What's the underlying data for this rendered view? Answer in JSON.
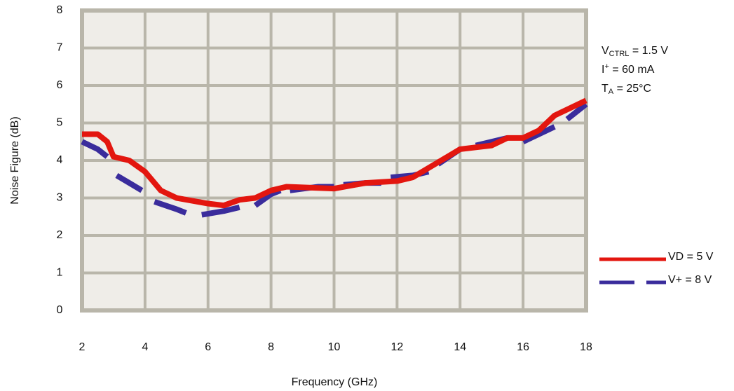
{
  "chart_data": {
    "type": "line",
    "xlabel": "Frequency (GHz)",
    "ylabel": "Noise Figure  (dB)",
    "xlim": [
      2,
      18
    ],
    "xticks": [
      2,
      4,
      6,
      8,
      10,
      12,
      14,
      16,
      18
    ],
    "ylim": [
      0,
      8
    ],
    "yticks": [
      0,
      1,
      2,
      3,
      4,
      5,
      6,
      7,
      8
    ],
    "grid": true,
    "legend": "right",
    "annotations": [
      [
        {
          "text": "V"
        },
        {
          "text": "CTRL",
          "shift": "sub"
        },
        {
          "text": " = 1.5 V"
        }
      ],
      [
        {
          "text": "I"
        },
        {
          "text": "+",
          "shift": "super"
        },
        {
          "text": "  = 60 mA"
        }
      ],
      [
        {
          "text": "T"
        },
        {
          "text": "A",
          "shift": "sub"
        },
        {
          "text": " = 25°C"
        }
      ]
    ],
    "series": [
      {
        "name": "VD = 5 V",
        "color": "#e3160f",
        "dashed": false,
        "x": [
          2,
          2.5,
          2.8,
          3.0,
          3.5,
          4.0,
          4.5,
          5.0,
          6.0,
          6.5,
          7.0,
          7.5,
          8.0,
          8.5,
          10,
          11,
          12,
          12.5,
          13,
          14,
          15,
          15.5,
          16,
          16.5,
          17,
          17.5,
          18
        ],
        "values": [
          4.7,
          4.7,
          4.5,
          4.1,
          4.0,
          3.7,
          3.2,
          3.0,
          2.85,
          2.8,
          2.95,
          3.0,
          3.2,
          3.3,
          3.25,
          3.4,
          3.45,
          3.55,
          3.8,
          4.3,
          4.4,
          4.6,
          4.6,
          4.8,
          5.2,
          5.4,
          5.6
        ]
      },
      {
        "name": "V+ = 8 V",
        "color": "#3a2c9c",
        "dashed": true,
        "x": [
          2,
          2.5,
          2.8,
          2.95,
          3.1,
          3.5,
          3.9,
          4.1,
          4.3,
          5.0,
          5.3,
          5.55,
          5.8,
          6.5,
          7.0,
          7.25,
          7.5,
          8.0,
          8.3,
          8.45,
          8.6,
          9.5,
          10.0,
          10.15,
          10.3,
          11.0,
          11.5,
          11.65,
          11.8,
          12.5,
          13.0,
          13.15,
          13.3,
          14.0,
          14.25,
          14.5,
          15.5,
          15.75,
          16.0,
          17.0,
          17.2,
          17.4,
          18.0
        ],
        "values": [
          4.5,
          4.3,
          4.1,
          null,
          3.6,
          3.4,
          3.2,
          null,
          2.9,
          2.7,
          2.6,
          null,
          2.55,
          2.65,
          2.75,
          null,
          2.8,
          3.1,
          3.2,
          null,
          3.2,
          3.3,
          3.3,
          null,
          3.35,
          3.4,
          3.4,
          null,
          3.55,
          3.6,
          3.7,
          null,
          3.9,
          4.3,
          null,
          4.4,
          4.6,
          null,
          4.5,
          4.9,
          null,
          5.1,
          5.5
        ]
      }
    ]
  }
}
